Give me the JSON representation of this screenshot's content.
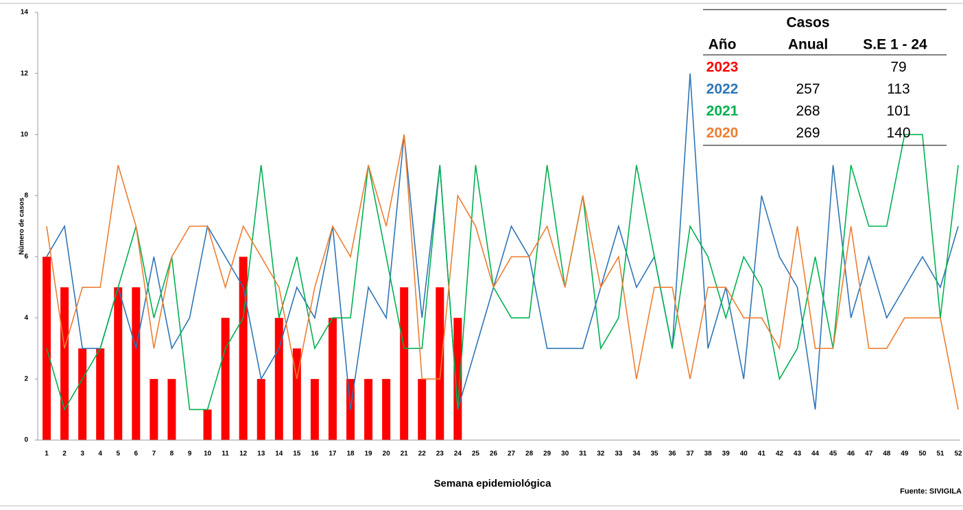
{
  "chart_data": {
    "type": "combo",
    "x": [
      1,
      2,
      3,
      4,
      5,
      6,
      7,
      8,
      9,
      10,
      11,
      12,
      13,
      14,
      15,
      16,
      17,
      18,
      19,
      20,
      21,
      22,
      23,
      24,
      25,
      26,
      27,
      28,
      29,
      30,
      31,
      32,
      33,
      34,
      35,
      36,
      37,
      38,
      39,
      40,
      41,
      42,
      43,
      44,
      45,
      46,
      47,
      48,
      49,
      50,
      51,
      52
    ],
    "ylim": [
      0,
      14
    ],
    "yticks": [
      0,
      2,
      4,
      6,
      8,
      10,
      12,
      14
    ],
    "y_label": "Número de casos",
    "x_label": "Semana epidemiológica",
    "source": "Fuente: SIVIGILA",
    "series": [
      {
        "name": "2023",
        "type": "bar",
        "color": "#ff0000",
        "se_1_24": 79,
        "values": [
          6,
          5,
          3,
          3,
          5,
          5,
          2,
          2,
          0,
          1,
          4,
          6,
          2,
          4,
          3,
          2,
          4,
          2,
          2,
          2,
          5,
          2,
          5,
          4,
          null,
          null,
          null,
          null,
          null,
          null,
          null,
          null,
          null,
          null,
          null,
          null,
          null,
          null,
          null,
          null,
          null,
          null,
          null,
          null,
          null,
          null,
          null,
          null,
          null,
          null,
          null,
          null
        ]
      },
      {
        "name": "2022",
        "type": "line",
        "color": "#2e75b6",
        "annual": 257,
        "se_1_24": 113,
        "values": [
          6,
          7,
          3,
          3,
          5,
          3,
          6,
          3,
          4,
          7,
          6,
          5,
          2,
          3,
          5,
          4,
          7,
          1,
          5,
          4,
          10,
          4,
          9,
          1,
          3,
          5,
          7,
          6,
          3,
          3,
          3,
          5,
          7,
          5,
          6,
          3,
          12,
          3,
          5,
          2,
          8,
          6,
          5,
          1,
          9,
          4,
          6,
          4,
          5,
          6,
          5,
          7
        ]
      },
      {
        "name": "2021",
        "type": "line",
        "color": "#00b050",
        "annual": 268,
        "se_1_24": 101,
        "values": [
          3,
          1,
          2,
          3,
          5,
          7,
          4,
          6,
          1,
          1,
          3,
          4,
          9,
          4,
          6,
          3,
          4,
          4,
          9,
          6,
          3,
          3,
          9,
          1,
          9,
          5,
          4,
          4,
          9,
          5,
          8,
          3,
          4,
          9,
          6,
          3,
          7,
          6,
          4,
          6,
          5,
          2,
          3,
          6,
          3,
          9,
          7,
          7,
          10,
          10,
          4,
          9
        ]
      },
      {
        "name": "2020",
        "type": "line",
        "color": "#ed7d31",
        "annual": 269,
        "se_1_24": 140,
        "values": [
          7,
          3,
          5,
          5,
          9,
          7,
          3,
          6,
          7,
          7,
          5,
          7,
          6,
          5,
          2,
          5,
          7,
          6,
          9,
          7,
          10,
          2,
          2,
          8,
          7,
          5,
          6,
          6,
          7,
          5,
          8,
          5,
          6,
          2,
          5,
          5,
          2,
          5,
          5,
          4,
          4,
          3,
          7,
          3,
          3,
          7,
          3,
          3,
          4,
          4,
          4,
          1
        ]
      }
    ],
    "table": {
      "group_header": "Casos",
      "columns": [
        "Año",
        "Anual",
        "S.E 1 - 24"
      ]
    }
  }
}
